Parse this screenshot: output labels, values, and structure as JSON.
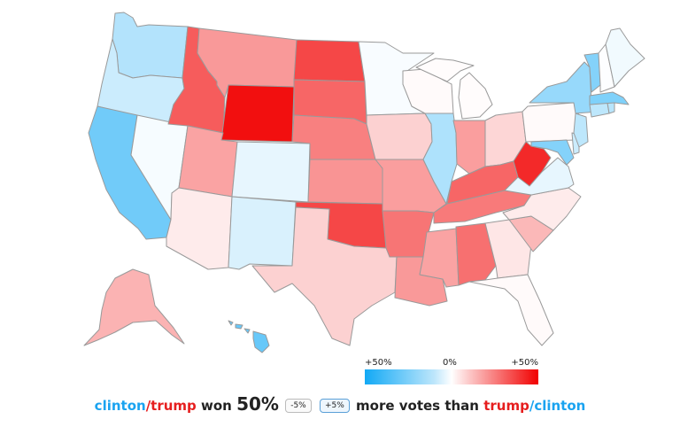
{
  "colors": {
    "clinton": "#1aa3f0",
    "trump": "#e61e1e",
    "scale_min": "#12a9f5",
    "scale_mid": "#ffffff",
    "scale_max": "#f10000"
  },
  "legend": {
    "left_label": "+50%",
    "mid_label": "0%",
    "right_label": "+50%"
  },
  "caption": {
    "clinton1": "clinton",
    "slash1": "/",
    "trump1": "trump",
    "won": " won ",
    "percent": "50%",
    "minus_button": "-5%",
    "plus_button": "+5%",
    "more_votes": " more votes than ",
    "trump2": "trump",
    "slash2": "/",
    "clinton2": "clinton"
  },
  "map_data": {
    "scale": "clinton margin (blue) to trump margin (red), -50% to +50%",
    "states": [
      {
        "id": "wa",
        "margin": -16
      },
      {
        "id": "or",
        "margin": -11
      },
      {
        "id": "ca",
        "margin": -30
      },
      {
        "id": "nv",
        "margin": -2
      },
      {
        "id": "id",
        "margin": 32
      },
      {
        "id": "mt",
        "margin": 20
      },
      {
        "id": "wy",
        "margin": 47
      },
      {
        "id": "ut",
        "margin": 18
      },
      {
        "id": "co",
        "margin": -5
      },
      {
        "id": "az",
        "margin": 4
      },
      {
        "id": "nm",
        "margin": -8
      },
      {
        "id": "nd",
        "margin": 36
      },
      {
        "id": "sd",
        "margin": 30
      },
      {
        "id": "ne",
        "margin": 25
      },
      {
        "id": "ks",
        "margin": 21
      },
      {
        "id": "ok",
        "margin": 36
      },
      {
        "id": "tx",
        "margin": 9
      },
      {
        "id": "mn",
        "margin": -1.5
      },
      {
        "id": "ia",
        "margin": 9
      },
      {
        "id": "mo",
        "margin": 19
      },
      {
        "id": "ar",
        "margin": 27
      },
      {
        "id": "la",
        "margin": 20
      },
      {
        "id": "wi",
        "margin": 1
      },
      {
        "id": "il",
        "margin": -17
      },
      {
        "id": "mi",
        "margin": 0.5
      },
      {
        "id": "in",
        "margin": 19
      },
      {
        "id": "oh",
        "margin": 8
      },
      {
        "id": "ky",
        "margin": 30
      },
      {
        "id": "tn",
        "margin": 26
      },
      {
        "id": "ms",
        "margin": 18
      },
      {
        "id": "al",
        "margin": 28
      },
      {
        "id": "ga",
        "margin": 5
      },
      {
        "id": "fl",
        "margin": 1
      },
      {
        "id": "sc",
        "margin": 14
      },
      {
        "id": "nc",
        "margin": 4
      },
      {
        "id": "va",
        "margin": -5
      },
      {
        "id": "wv",
        "margin": 42
      },
      {
        "id": "pa",
        "margin": 1
      },
      {
        "id": "ny",
        "margin": -22
      },
      {
        "id": "vt",
        "margin": -26
      },
      {
        "id": "nh",
        "margin": -0.5
      },
      {
        "id": "me",
        "margin": -3
      },
      {
        "id": "ma",
        "margin": -27
      },
      {
        "id": "ct",
        "margin": -14
      },
      {
        "id": "ri",
        "margin": -15
      },
      {
        "id": "nj",
        "margin": -14
      },
      {
        "id": "de",
        "margin": -11
      },
      {
        "id": "md",
        "margin": -26
      },
      {
        "id": "ak",
        "margin": 15
      },
      {
        "id": "hi",
        "margin": -32
      }
    ]
  }
}
